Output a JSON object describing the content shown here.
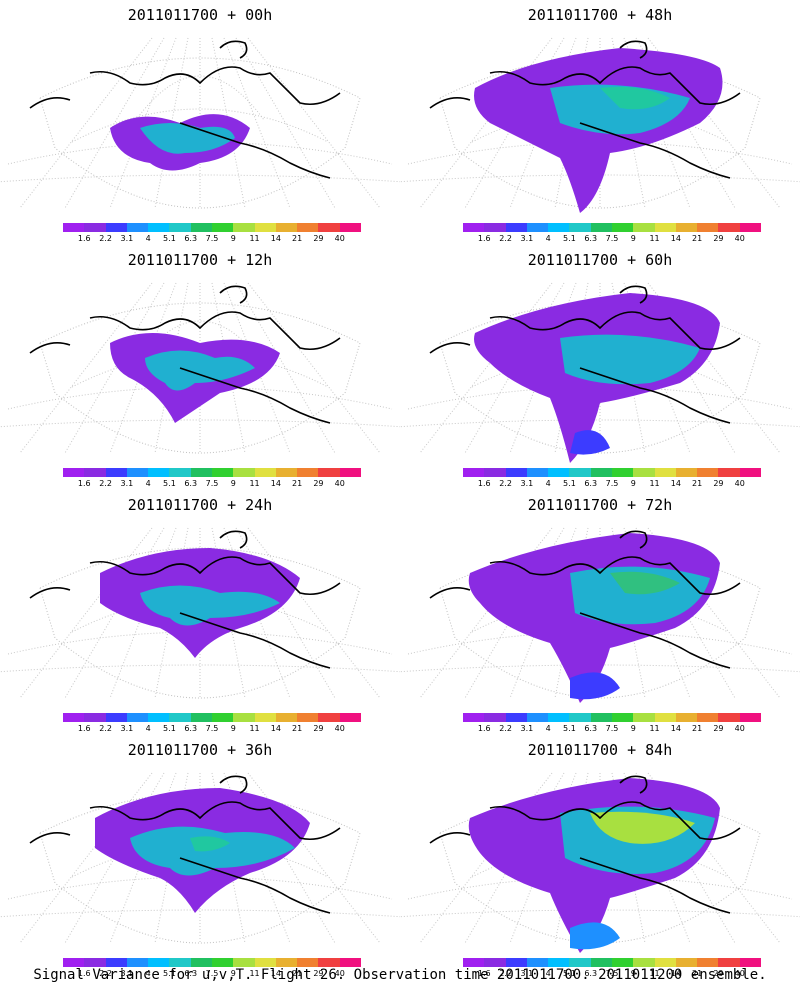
{
  "panels": [
    {
      "title": "2011011700 + 00h"
    },
    {
      "title": "2011011700 + 48h"
    },
    {
      "title": "2011011700 + 12h"
    },
    {
      "title": "2011011700 + 60h"
    },
    {
      "title": "2011011700 + 24h"
    },
    {
      "title": "2011011700 + 72h"
    },
    {
      "title": "2011011700 + 36h"
    },
    {
      "title": "2011011700 + 84h"
    }
  ],
  "colorbar": {
    "labels": [
      "1.6",
      "2.2",
      "3.1",
      "4",
      "5.1",
      "6.3",
      "7.5",
      "9",
      "11",
      "14",
      "21",
      "29",
      "40"
    ],
    "colors": [
      "#a020f0",
      "#8a2be2",
      "#3c3cff",
      "#1e90ff",
      "#00bfff",
      "#20c8c8",
      "#20c060",
      "#30d030",
      "#a8e040",
      "#e0e040",
      "#e8b030",
      "#f08030",
      "#f04040",
      "#f0107f"
    ]
  },
  "footer": "Signal Variance for u,v,T. Flight 26. Observation time 2011011700. 2011011200 ensemble."
}
